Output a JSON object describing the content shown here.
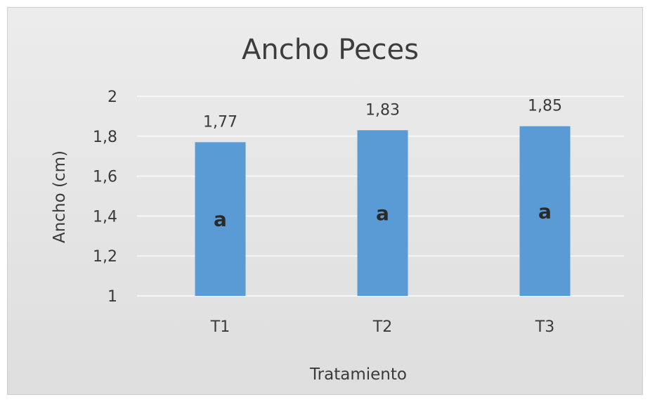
{
  "chart_data": {
    "type": "bar",
    "title": "Ancho Peces",
    "xlabel": "Tratamiento",
    "ylabel": "Ancho (cm)",
    "categories": [
      "T1",
      "T2",
      "T3"
    ],
    "values": [
      1.77,
      1.83,
      1.85
    ],
    "data_labels": [
      "1,77",
      "1,83",
      "1,85"
    ],
    "bar_labels": [
      "a",
      "a",
      "a"
    ],
    "yticks": [
      1,
      1.2,
      1.4,
      1.6,
      1.8,
      2
    ],
    "ytick_labels": [
      "1",
      "1,2",
      "1,4",
      "1,6",
      "1,8",
      "2"
    ],
    "ylim": [
      1,
      2
    ],
    "grid": true,
    "legend": "none",
    "colors": {
      "bar": "#5b9bd5",
      "background": "#e4e4e4",
      "grid": "#f6f6f6"
    }
  }
}
